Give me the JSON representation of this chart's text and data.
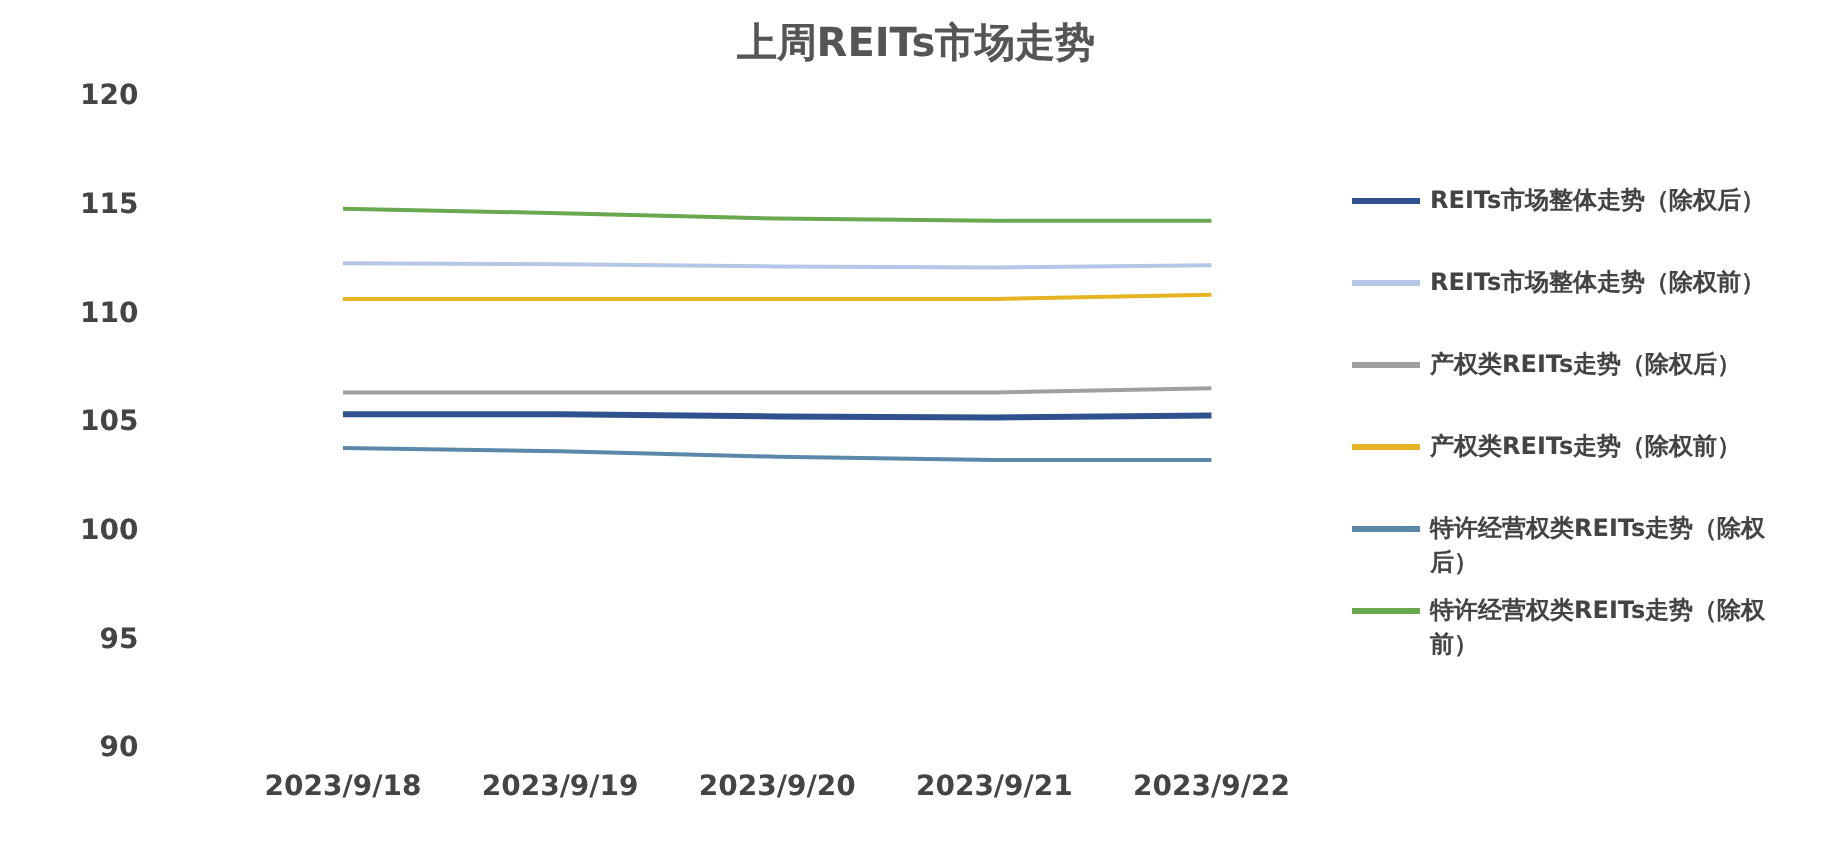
{
  "chart_data": {
    "type": "line",
    "title": "上周REITs市场走势",
    "categories": [
      "2023/9/18",
      "2023/9/19",
      "2023/9/20",
      "2023/9/21",
      "2023/9/22"
    ],
    "series": [
      {
        "name": "REITs市场整体走势（除权后）",
        "color": "#2f528f",
        "values": [
          105.4,
          105.4,
          105.3,
          105.25,
          105.35
        ]
      },
      {
        "name": "REITs市场整体走势（除权前）",
        "color": "#b4c7e7",
        "values": [
          112.35,
          112.3,
          112.2,
          112.15,
          112.25
        ]
      },
      {
        "name": "产权类REITs走势（除权后）",
        "color": "#a0a0a0",
        "values": [
          106.4,
          106.4,
          106.4,
          106.4,
          106.6
        ]
      },
      {
        "name": "产权类REITs走势（除权前）",
        "color": "#e6b422",
        "values": [
          110.7,
          110.7,
          110.7,
          110.7,
          110.9
        ]
      },
      {
        "name": "特许经营权类REITs走势（除权后）",
        "color": "#5b87a8",
        "values": [
          103.85,
          103.7,
          103.45,
          103.3,
          103.3
        ]
      },
      {
        "name": "特许经营权类REITs走势（除权前）",
        "color": "#6aa84f",
        "values": [
          114.85,
          114.65,
          114.4,
          114.3,
          114.3
        ]
      }
    ],
    "ylim": [
      90,
      120
    ],
    "yticks": [
      90,
      95,
      100,
      105,
      110,
      115,
      120
    ],
    "grid": false,
    "legend": "right",
    "marker": "none",
    "line_style": "solid"
  }
}
